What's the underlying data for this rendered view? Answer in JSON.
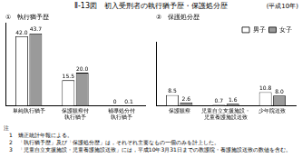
{
  "title": "Ⅱ-13図　初入受刑者の執行猶予歴・保護処分歴",
  "subtitle": "(平成10年)",
  "notes_heading": "注",
  "notes": [
    "1　矯正統計年報による。",
    "2　「執行猶予歴」及び「保護処分歴」は，それぞれ主要なもの一個のみを計上した。",
    "3　「児童自立支援施設・児童養護施設送致」には，平成10年3月31日までの教護院・養護施設送致の数値を含む。"
  ],
  "chart_data": [
    {
      "type": "bar",
      "title": "①　執行猶予歴",
      "categories": [
        "単純執行猶予",
        [
          "保護観察付",
          "執行猶予"
        ],
        [
          "補導処分付",
          "執行猶予"
        ]
      ],
      "series": [
        {
          "name": "男子",
          "color": "#ffffff",
          "values": [
            42.0,
            15.5,
            0
          ],
          "value_labels": [
            "42.0",
            "15.5",
            "0"
          ]
        },
        {
          "name": "女子",
          "color": "#9a9a9a",
          "values": [
            43.7,
            20.0,
            0.1
          ],
          "value_labels": [
            "43.7",
            "20.0",
            "0.1"
          ]
        }
      ],
      "ylim": [
        0,
        50
      ],
      "grid": false,
      "data_labels": true,
      "tick_labels": "x"
    },
    {
      "type": "bar",
      "title": "②　保護処分歴",
      "categories": [
        "保護観察",
        [
          "児童自立支援施設・",
          "児童養護施設送致"
        ],
        "少年院送致"
      ],
      "series": [
        {
          "name": "男子",
          "color": "#ffffff",
          "values": [
            8.5,
            0.7,
            10.8
          ],
          "value_labels": [
            "8.5",
            "0.7",
            "10.8"
          ]
        },
        {
          "name": "女子",
          "color": "#9a9a9a",
          "values": [
            2.6,
            1.6,
            8.0
          ],
          "value_labels": [
            "2.6",
            "1.6",
            "8.0"
          ]
        }
      ],
      "ylim": [
        0,
        50
      ],
      "grid": false,
      "data_labels": true,
      "tick_labels": "x",
      "legend": "top right"
    }
  ]
}
